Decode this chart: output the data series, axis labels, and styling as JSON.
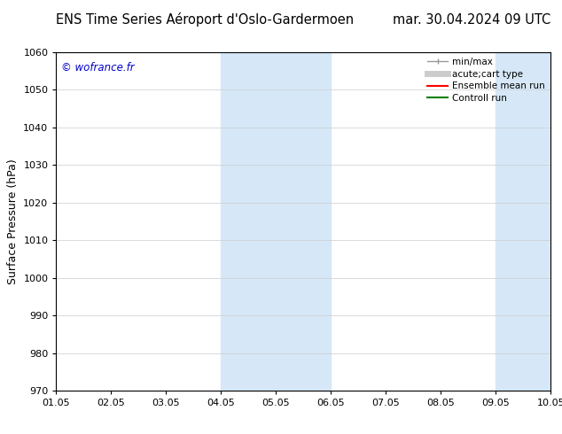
{
  "title_left": "ENS Time Series Aéroport d'Oslo-Gardermoen",
  "title_right": "mar. 30.04.2024 09 UTC",
  "ylabel": "Surface Pressure (hPa)",
  "ylim": [
    970,
    1060
  ],
  "yticks": [
    970,
    980,
    990,
    1000,
    1010,
    1020,
    1030,
    1040,
    1050,
    1060
  ],
  "xtick_labels": [
    "01.05",
    "02.05",
    "03.05",
    "04.05",
    "05.05",
    "06.05",
    "07.05",
    "08.05",
    "09.05",
    "10.05"
  ],
  "xlim": [
    0,
    9
  ],
  "watermark": "© wofrance.fr",
  "watermark_color": "#0000cc",
  "shaded_bands": [
    {
      "x_start": 3.0,
      "x_end": 4.0,
      "color": "#d6e8f7"
    },
    {
      "x_start": 4.0,
      "x_end": 5.0,
      "color": "#d6e8f7"
    },
    {
      "x_start": 8.0,
      "x_end": 9.0,
      "color": "#d6e8f7"
    }
  ],
  "legend_entries": [
    {
      "label": "min/max",
      "color": "#999999",
      "lw": 1,
      "linestyle": "solid"
    },
    {
      "label": "acute;cart type",
      "color": "#cccccc",
      "lw": 5,
      "linestyle": "solid"
    },
    {
      "label": "Ensemble mean run",
      "color": "#ff0000",
      "lw": 1.5,
      "linestyle": "solid"
    },
    {
      "label": "Controll run",
      "color": "#008000",
      "lw": 1.5,
      "linestyle": "solid"
    }
  ],
  "bg_color": "#ffffff",
  "grid_color": "#cccccc",
  "title_fontsize": 10.5,
  "tick_fontsize": 8,
  "ylabel_fontsize": 9
}
